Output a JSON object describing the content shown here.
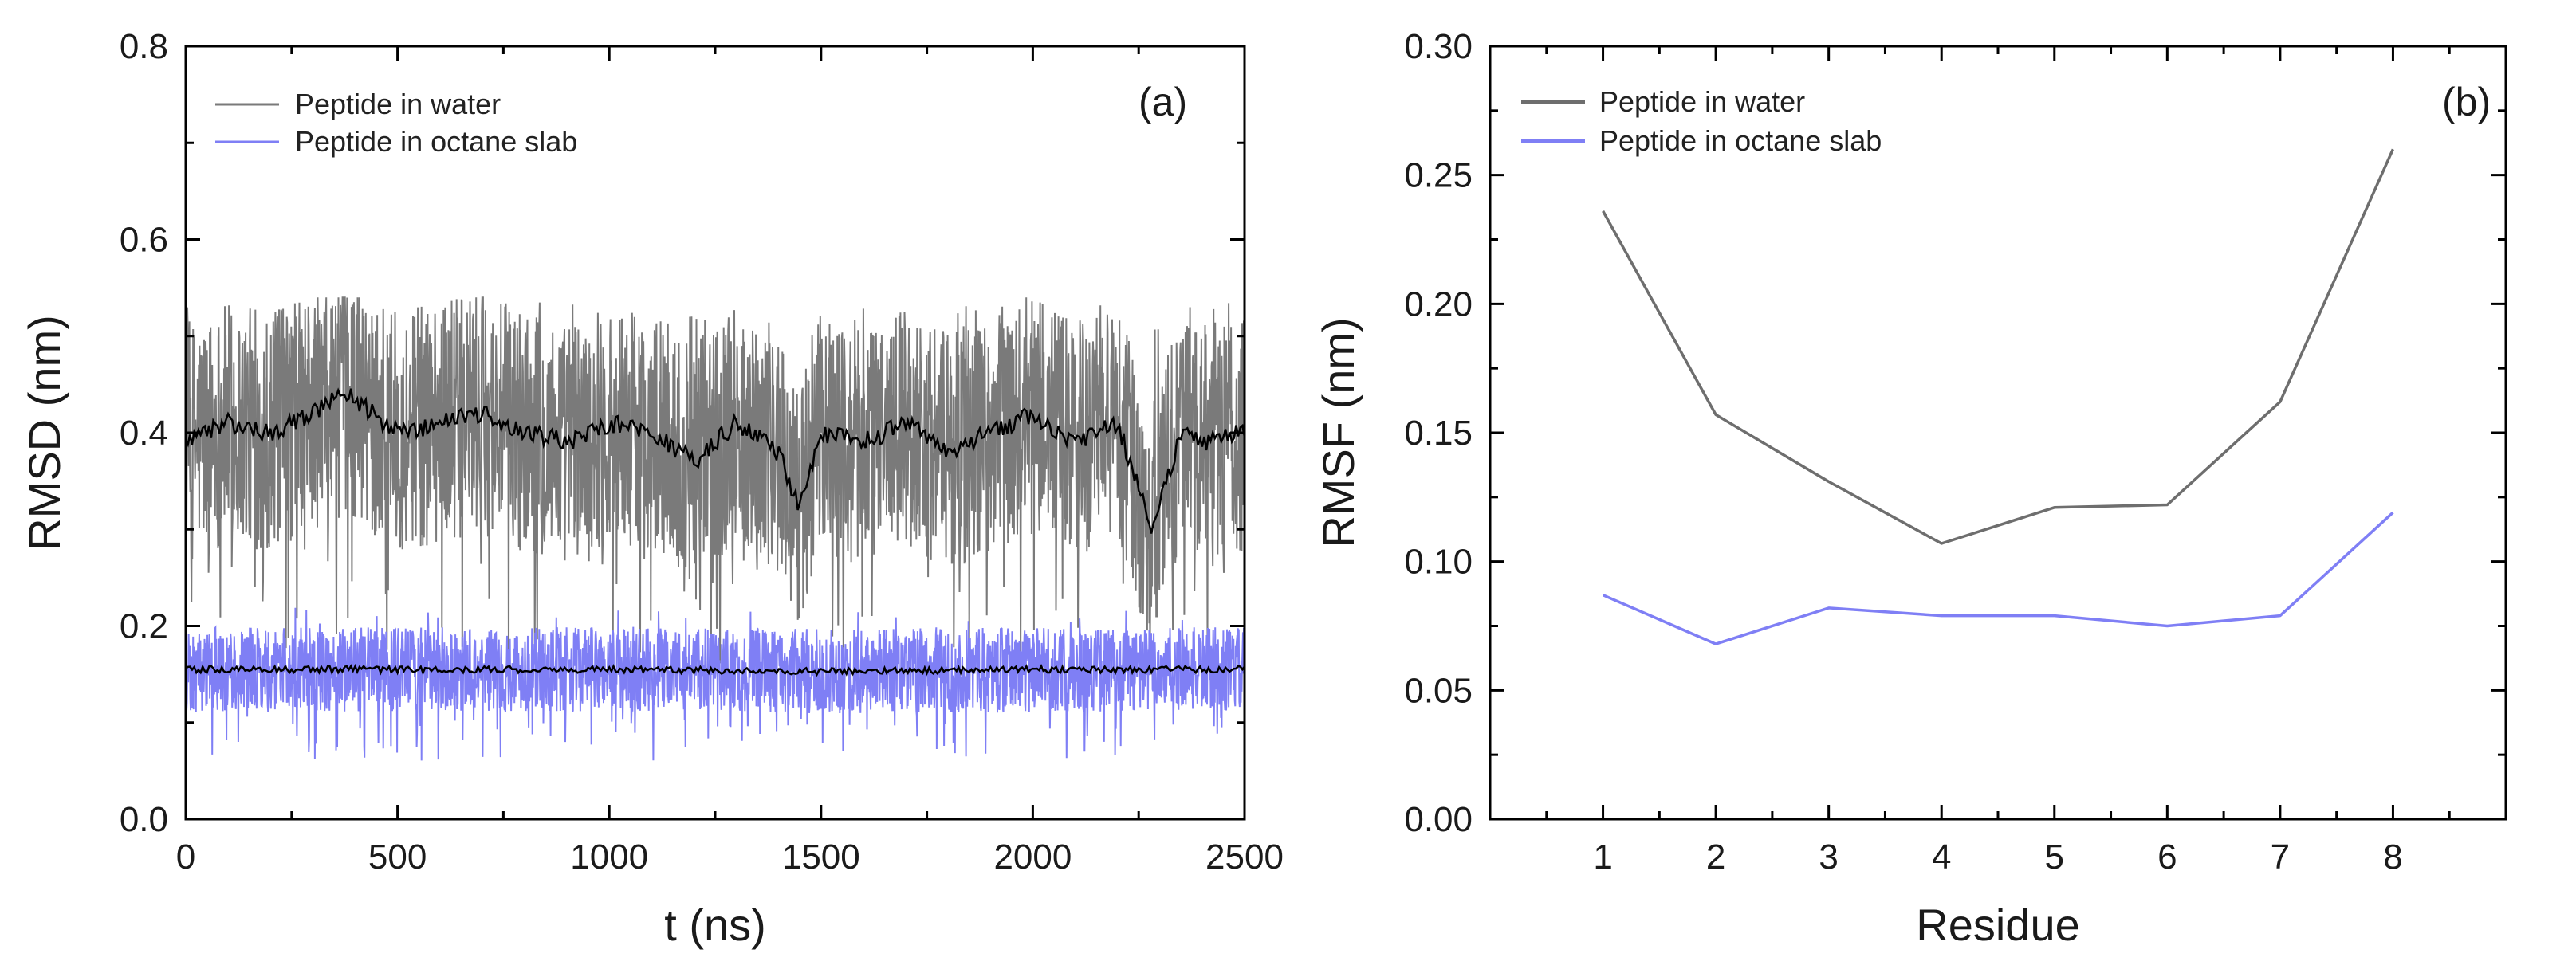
{
  "chart_data": [
    {
      "type": "line",
      "panel_label": "(a)",
      "xlabel": "t (ns)",
      "ylabel": "RMSD (nm)",
      "xlim": [
        0,
        2500
      ],
      "ylim": [
        0,
        0.8
      ],
      "xticks": [
        0,
        500,
        1000,
        1500,
        2000,
        2500
      ],
      "xtick_labels": [
        "0",
        "500",
        "1000",
        "1500",
        "2000",
        "2500"
      ],
      "yticks": [
        0.0,
        0.2,
        0.4,
        0.6,
        0.8
      ],
      "ytick_labels": [
        "0.0",
        "0.2",
        "0.4",
        "0.6",
        "0.8"
      ],
      "grid": false,
      "legend_position": "top-left",
      "series": [
        {
          "name": "Peptide in water",
          "color": "#7a7a7a",
          "running_average_color": "#000000",
          "mean": 0.4,
          "typical_range": [
            0.3,
            0.5
          ],
          "min": 0.16,
          "max": 0.54,
          "running_average": {
            "t": [
              0,
              100,
              200,
              300,
              380,
              500,
              600,
              700,
              800,
              900,
              1000,
              1100,
              1200,
              1300,
              1400,
              1450,
              1500,
              1600,
              1700,
              1800,
              1900,
              2000,
              2100,
              2200,
              2280,
              2350,
              2400,
              2500
            ],
            "rmsd": [
              0.39,
              0.41,
              0.4,
              0.42,
              0.44,
              0.4,
              0.41,
              0.42,
              0.4,
              0.39,
              0.41,
              0.4,
              0.37,
              0.41,
              0.38,
              0.32,
              0.4,
              0.39,
              0.41,
              0.38,
              0.4,
              0.42,
              0.39,
              0.41,
              0.3,
              0.4,
              0.39,
              0.4
            ]
          }
        },
        {
          "name": "Peptide in octane slab",
          "color": "#7f7ff5",
          "running_average_color": "#000000",
          "mean": 0.155,
          "typical_range": [
            0.12,
            0.19
          ],
          "min": 0.06,
          "max": 0.22,
          "running_average": {
            "t": [
              0,
              500,
              1000,
              1500,
              2000,
              2500
            ],
            "rmsd": [
              0.155,
              0.155,
              0.155,
              0.153,
              0.155,
              0.155
            ]
          }
        }
      ]
    },
    {
      "type": "line",
      "panel_label": "(b)",
      "xlabel": "Residue",
      "ylabel": "RMSF (nm)",
      "xlim": [
        0,
        9
      ],
      "ylim": [
        0,
        0.3
      ],
      "xticks": [
        1,
        2,
        3,
        4,
        5,
        6,
        7,
        8
      ],
      "xtick_labels": [
        "1",
        "2",
        "3",
        "4",
        "5",
        "6",
        "7",
        "8"
      ],
      "yticks": [
        0.0,
        0.05,
        0.1,
        0.15,
        0.2,
        0.25,
        0.3
      ],
      "ytick_labels": [
        "0.00",
        "0.05",
        "0.10",
        "0.15",
        "0.20",
        "0.25",
        "0.30"
      ],
      "grid": false,
      "legend_position": "top-left",
      "x": [
        1,
        2,
        3,
        4,
        5,
        6,
        7,
        8
      ],
      "series": [
        {
          "name": "Peptide in water",
          "color": "#6e6e6e",
          "values": [
            0.236,
            0.157,
            0.131,
            0.107,
            0.121,
            0.122,
            0.162,
            0.26
          ]
        },
        {
          "name": "Peptide in octane slab",
          "color": "#7f7ff5",
          "values": [
            0.087,
            0.068,
            0.082,
            0.079,
            0.079,
            0.075,
            0.079,
            0.119
          ]
        }
      ]
    }
  ]
}
